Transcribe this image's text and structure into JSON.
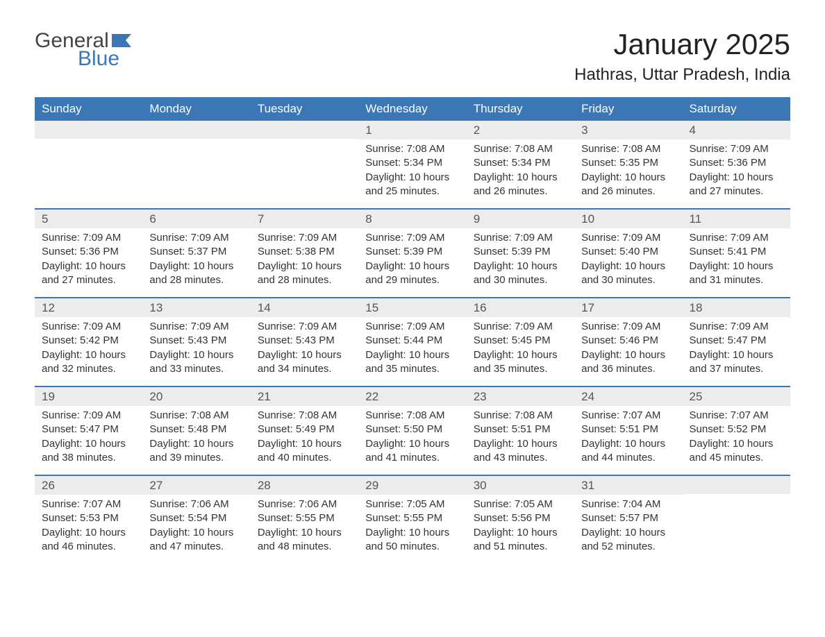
{
  "logo": {
    "text_top": "General",
    "text_bottom": "Blue",
    "flag_color": "#3b77b5"
  },
  "title": "January 2025",
  "location": "Hathras, Uttar Pradesh, India",
  "colors": {
    "header_bg": "#3b77b5",
    "header_fg": "#ffffff",
    "daynum_bg": "#ececec",
    "week_divider": "#3b77b5",
    "text": "#333333",
    "background": "#ffffff"
  },
  "day_labels": [
    "Sunday",
    "Monday",
    "Tuesday",
    "Wednesday",
    "Thursday",
    "Friday",
    "Saturday"
  ],
  "weeks": [
    [
      null,
      null,
      null,
      {
        "n": "1",
        "sunrise": "Sunrise: 7:08 AM",
        "sunset": "Sunset: 5:34 PM",
        "daylight1": "Daylight: 10 hours",
        "daylight2": "and 25 minutes."
      },
      {
        "n": "2",
        "sunrise": "Sunrise: 7:08 AM",
        "sunset": "Sunset: 5:34 PM",
        "daylight1": "Daylight: 10 hours",
        "daylight2": "and 26 minutes."
      },
      {
        "n": "3",
        "sunrise": "Sunrise: 7:08 AM",
        "sunset": "Sunset: 5:35 PM",
        "daylight1": "Daylight: 10 hours",
        "daylight2": "and 26 minutes."
      },
      {
        "n": "4",
        "sunrise": "Sunrise: 7:09 AM",
        "sunset": "Sunset: 5:36 PM",
        "daylight1": "Daylight: 10 hours",
        "daylight2": "and 27 minutes."
      }
    ],
    [
      {
        "n": "5",
        "sunrise": "Sunrise: 7:09 AM",
        "sunset": "Sunset: 5:36 PM",
        "daylight1": "Daylight: 10 hours",
        "daylight2": "and 27 minutes."
      },
      {
        "n": "6",
        "sunrise": "Sunrise: 7:09 AM",
        "sunset": "Sunset: 5:37 PM",
        "daylight1": "Daylight: 10 hours",
        "daylight2": "and 28 minutes."
      },
      {
        "n": "7",
        "sunrise": "Sunrise: 7:09 AM",
        "sunset": "Sunset: 5:38 PM",
        "daylight1": "Daylight: 10 hours",
        "daylight2": "and 28 minutes."
      },
      {
        "n": "8",
        "sunrise": "Sunrise: 7:09 AM",
        "sunset": "Sunset: 5:39 PM",
        "daylight1": "Daylight: 10 hours",
        "daylight2": "and 29 minutes."
      },
      {
        "n": "9",
        "sunrise": "Sunrise: 7:09 AM",
        "sunset": "Sunset: 5:39 PM",
        "daylight1": "Daylight: 10 hours",
        "daylight2": "and 30 minutes."
      },
      {
        "n": "10",
        "sunrise": "Sunrise: 7:09 AM",
        "sunset": "Sunset: 5:40 PM",
        "daylight1": "Daylight: 10 hours",
        "daylight2": "and 30 minutes."
      },
      {
        "n": "11",
        "sunrise": "Sunrise: 7:09 AM",
        "sunset": "Sunset: 5:41 PM",
        "daylight1": "Daylight: 10 hours",
        "daylight2": "and 31 minutes."
      }
    ],
    [
      {
        "n": "12",
        "sunrise": "Sunrise: 7:09 AM",
        "sunset": "Sunset: 5:42 PM",
        "daylight1": "Daylight: 10 hours",
        "daylight2": "and 32 minutes."
      },
      {
        "n": "13",
        "sunrise": "Sunrise: 7:09 AM",
        "sunset": "Sunset: 5:43 PM",
        "daylight1": "Daylight: 10 hours",
        "daylight2": "and 33 minutes."
      },
      {
        "n": "14",
        "sunrise": "Sunrise: 7:09 AM",
        "sunset": "Sunset: 5:43 PM",
        "daylight1": "Daylight: 10 hours",
        "daylight2": "and 34 minutes."
      },
      {
        "n": "15",
        "sunrise": "Sunrise: 7:09 AM",
        "sunset": "Sunset: 5:44 PM",
        "daylight1": "Daylight: 10 hours",
        "daylight2": "and 35 minutes."
      },
      {
        "n": "16",
        "sunrise": "Sunrise: 7:09 AM",
        "sunset": "Sunset: 5:45 PM",
        "daylight1": "Daylight: 10 hours",
        "daylight2": "and 35 minutes."
      },
      {
        "n": "17",
        "sunrise": "Sunrise: 7:09 AM",
        "sunset": "Sunset: 5:46 PM",
        "daylight1": "Daylight: 10 hours",
        "daylight2": "and 36 minutes."
      },
      {
        "n": "18",
        "sunrise": "Sunrise: 7:09 AM",
        "sunset": "Sunset: 5:47 PM",
        "daylight1": "Daylight: 10 hours",
        "daylight2": "and 37 minutes."
      }
    ],
    [
      {
        "n": "19",
        "sunrise": "Sunrise: 7:09 AM",
        "sunset": "Sunset: 5:47 PM",
        "daylight1": "Daylight: 10 hours",
        "daylight2": "and 38 minutes."
      },
      {
        "n": "20",
        "sunrise": "Sunrise: 7:08 AM",
        "sunset": "Sunset: 5:48 PM",
        "daylight1": "Daylight: 10 hours",
        "daylight2": "and 39 minutes."
      },
      {
        "n": "21",
        "sunrise": "Sunrise: 7:08 AM",
        "sunset": "Sunset: 5:49 PM",
        "daylight1": "Daylight: 10 hours",
        "daylight2": "and 40 minutes."
      },
      {
        "n": "22",
        "sunrise": "Sunrise: 7:08 AM",
        "sunset": "Sunset: 5:50 PM",
        "daylight1": "Daylight: 10 hours",
        "daylight2": "and 41 minutes."
      },
      {
        "n": "23",
        "sunrise": "Sunrise: 7:08 AM",
        "sunset": "Sunset: 5:51 PM",
        "daylight1": "Daylight: 10 hours",
        "daylight2": "and 43 minutes."
      },
      {
        "n": "24",
        "sunrise": "Sunrise: 7:07 AM",
        "sunset": "Sunset: 5:51 PM",
        "daylight1": "Daylight: 10 hours",
        "daylight2": "and 44 minutes."
      },
      {
        "n": "25",
        "sunrise": "Sunrise: 7:07 AM",
        "sunset": "Sunset: 5:52 PM",
        "daylight1": "Daylight: 10 hours",
        "daylight2": "and 45 minutes."
      }
    ],
    [
      {
        "n": "26",
        "sunrise": "Sunrise: 7:07 AM",
        "sunset": "Sunset: 5:53 PM",
        "daylight1": "Daylight: 10 hours",
        "daylight2": "and 46 minutes."
      },
      {
        "n": "27",
        "sunrise": "Sunrise: 7:06 AM",
        "sunset": "Sunset: 5:54 PM",
        "daylight1": "Daylight: 10 hours",
        "daylight2": "and 47 minutes."
      },
      {
        "n": "28",
        "sunrise": "Sunrise: 7:06 AM",
        "sunset": "Sunset: 5:55 PM",
        "daylight1": "Daylight: 10 hours",
        "daylight2": "and 48 minutes."
      },
      {
        "n": "29",
        "sunrise": "Sunrise: 7:05 AM",
        "sunset": "Sunset: 5:55 PM",
        "daylight1": "Daylight: 10 hours",
        "daylight2": "and 50 minutes."
      },
      {
        "n": "30",
        "sunrise": "Sunrise: 7:05 AM",
        "sunset": "Sunset: 5:56 PM",
        "daylight1": "Daylight: 10 hours",
        "daylight2": "and 51 minutes."
      },
      {
        "n": "31",
        "sunrise": "Sunrise: 7:04 AM",
        "sunset": "Sunset: 5:57 PM",
        "daylight1": "Daylight: 10 hours",
        "daylight2": "and 52 minutes."
      },
      null
    ]
  ]
}
